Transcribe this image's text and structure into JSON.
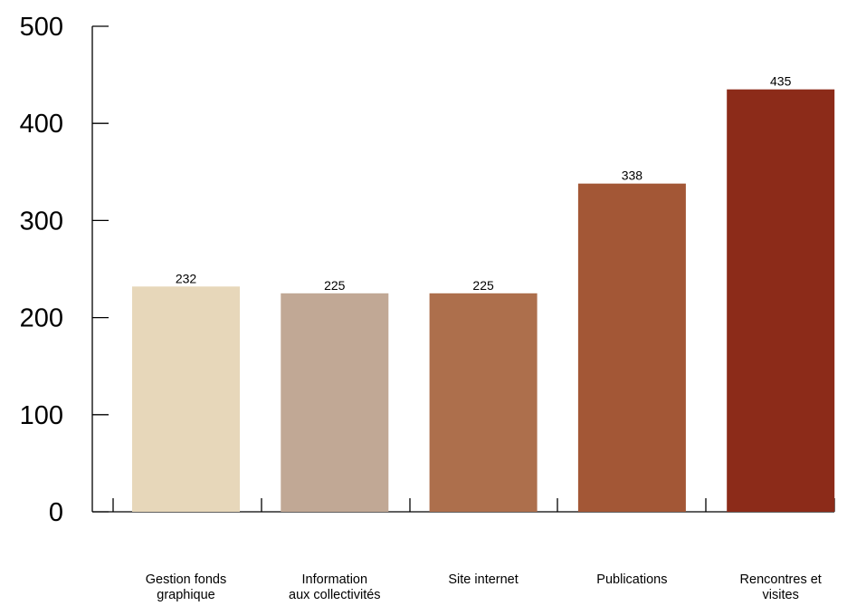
{
  "chart_data": {
    "type": "bar",
    "categories": [
      [
        "Gestion fonds",
        "graphique"
      ],
      [
        "Information",
        "aux collectivités"
      ],
      [
        "Site internet"
      ],
      [
        "Publications"
      ],
      [
        "Rencontres et",
        "visites"
      ]
    ],
    "values": [
      232,
      225,
      225,
      338,
      435
    ],
    "value_labels": [
      "232",
      "225",
      "225",
      "338",
      "435"
    ],
    "colors": [
      "#E7D7BA",
      "#C1A895",
      "#AD6F4C",
      "#A35736",
      "#8C2B19"
    ],
    "yticks": [
      0,
      100,
      200,
      300,
      400,
      500
    ],
    "ytick_labels": [
      "0",
      "100",
      "200",
      "300",
      "400",
      "500"
    ],
    "ylim": [
      0,
      500
    ],
    "title": "",
    "xlabel": "",
    "ylabel": "",
    "grid": false,
    "legend": "none"
  }
}
